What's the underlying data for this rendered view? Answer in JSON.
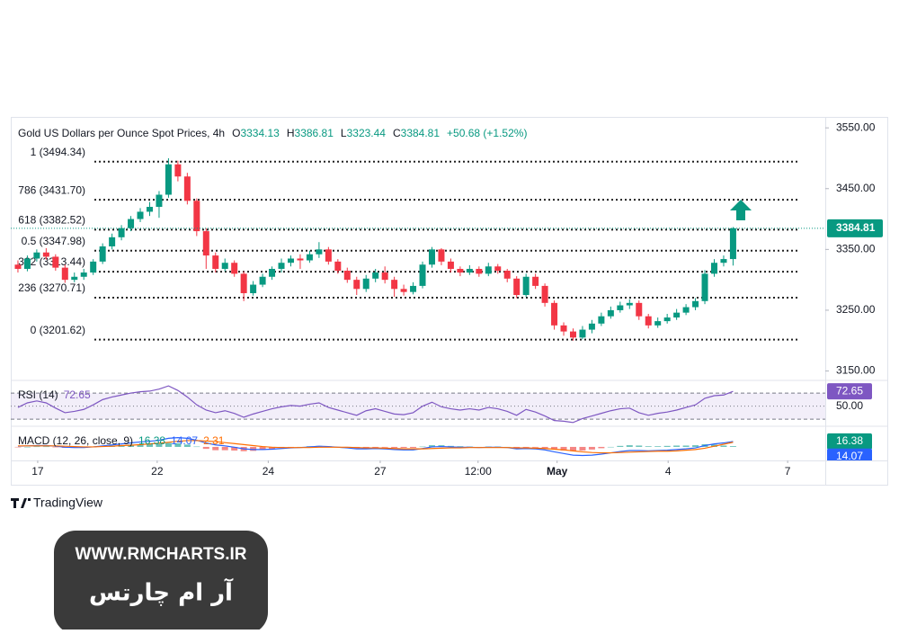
{
  "chart_data": {
    "type": "candlestick",
    "title": "Gold US Dollars per Ounce Spot Prices, 4h",
    "ohlc_labels": [
      "O",
      "H",
      "L",
      "C"
    ],
    "change_label": "+50.68 (+1.52%)",
    "up_color": "#089981",
    "down_color": "#f23645",
    "open": [
      3325,
      3318,
      3335,
      3345,
      3338,
      3320,
      3300,
      3305,
      3312,
      3330,
      3355,
      3370,
      3385,
      3400,
      3412,
      3420,
      3440,
      3490,
      3470,
      3430,
      3380,
      3340,
      3318,
      3328,
      3310,
      3278,
      3292,
      3305,
      3318,
      3328,
      3335,
      3332,
      3342,
      3350,
      3330,
      3315,
      3300,
      3285,
      3302,
      3312,
      3300,
      3285,
      3280,
      3290,
      3325,
      3350,
      3330,
      3318,
      3312,
      3318,
      3310,
      3322,
      3315,
      3302,
      3275,
      3305,
      3290,
      3262,
      3225,
      3215,
      3205,
      3218,
      3228,
      3240,
      3250,
      3258,
      3262,
      3240,
      3225,
      3232,
      3238,
      3246,
      3255,
      3265,
      3310,
      3328,
      3334.13
    ],
    "high": [
      3332,
      3340,
      3350,
      3352,
      3342,
      3325,
      3312,
      3318,
      3334,
      3360,
      3376,
      3390,
      3405,
      3418,
      3428,
      3446,
      3500,
      3496,
      3476,
      3434,
      3385,
      3345,
      3335,
      3332,
      3314,
      3298,
      3310,
      3322,
      3335,
      3340,
      3342,
      3348,
      3362,
      3354,
      3334,
      3320,
      3305,
      3308,
      3318,
      3322,
      3305,
      3292,
      3296,
      3330,
      3354,
      3352,
      3335,
      3322,
      3324,
      3322,
      3328,
      3326,
      3318,
      3306,
      3310,
      3310,
      3294,
      3266,
      3230,
      3220,
      3224,
      3234,
      3246,
      3256,
      3264,
      3268,
      3266,
      3244,
      3238,
      3244,
      3252,
      3260,
      3270,
      3316,
      3334,
      3340,
      3386.81
    ],
    "low": [
      3312,
      3314,
      3330,
      3333,
      3315,
      3295,
      3296,
      3300,
      3308,
      3326,
      3350,
      3365,
      3380,
      3395,
      3405,
      3402,
      3435,
      3462,
      3424,
      3372,
      3318,
      3312,
      3314,
      3305,
      3265,
      3274,
      3288,
      3300,
      3312,
      3322,
      3318,
      3328,
      3336,
      3325,
      3310,
      3295,
      3275,
      3280,
      3296,
      3294,
      3272,
      3274,
      3276,
      3286,
      3320,
      3324,
      3312,
      3306,
      3308,
      3305,
      3306,
      3310,
      3296,
      3270,
      3272,
      3285,
      3256,
      3218,
      3208,
      3200,
      3202,
      3212,
      3224,
      3236,
      3246,
      3252,
      3234,
      3220,
      3221,
      3228,
      3234,
      3242,
      3250,
      3260,
      3305,
      3322,
      3323.44
    ],
    "close": [
      3318,
      3335,
      3345,
      3338,
      3320,
      3300,
      3305,
      3312,
      3330,
      3355,
      3370,
      3385,
      3400,
      3412,
      3420,
      3440,
      3490,
      3470,
      3430,
      3380,
      3340,
      3318,
      3328,
      3310,
      3278,
      3292,
      3305,
      3318,
      3328,
      3335,
      3332,
      3342,
      3350,
      3330,
      3315,
      3300,
      3285,
      3302,
      3312,
      3300,
      3285,
      3280,
      3290,
      3325,
      3350,
      3330,
      3318,
      3312,
      3318,
      3310,
      3322,
      3315,
      3302,
      3275,
      3305,
      3290,
      3262,
      3225,
      3215,
      3205,
      3218,
      3228,
      3240,
      3250,
      3258,
      3262,
      3240,
      3225,
      3232,
      3238,
      3246,
      3255,
      3265,
      3310,
      3328,
      3334.13,
      3384.81
    ],
    "ylim": [
      3136,
      3568
    ],
    "yticks": [
      {
        "value": 3550,
        "label": "3550.00"
      },
      {
        "value": 3450,
        "label": "3450.00"
      },
      {
        "value": 3350,
        "label": "3350.00"
      },
      {
        "value": 3250,
        "label": "3250.00"
      },
      {
        "value": 3150,
        "label": "3150.00"
      }
    ],
    "xlim": [
      -0.76,
      85.8
    ],
    "xticks": [
      {
        "value": 2.1,
        "label": "17"
      },
      {
        "value": 14.8,
        "label": "22"
      },
      {
        "value": 26.6,
        "label": "24"
      },
      {
        "value": 38.5,
        "label": "27"
      },
      {
        "value": 48.9,
        "label": "12:00"
      },
      {
        "value": 57.3,
        "label": "May"
      },
      {
        "value": 69.1,
        "label": "4"
      },
      {
        "value": 81.8,
        "label": "7"
      }
    ],
    "fib_levels": [
      {
        "label": "1 (3494.34)",
        "value": 3494.34
      },
      {
        "label": "786 (3431.70)",
        "value": 3431.7
      },
      {
        "label": "618 (3382.52)",
        "value": 3382.52
      },
      {
        "label": "0.5 (3347.98)",
        "value": 3347.98
      },
      {
        "label": "382 (3313.44)",
        "value": 3313.44
      },
      {
        "label": "236 (3270.71)",
        "value": 3270.71
      },
      {
        "label": "0 (3201.62)",
        "value": 3201.62
      }
    ],
    "rsi": {
      "title": "RSI (14)",
      "color": "#7e57c2",
      "values": [
        48,
        55,
        58,
        55,
        47,
        40,
        42,
        45,
        52,
        60,
        64,
        67,
        70,
        72,
        73,
        76,
        81,
        74,
        64,
        52,
        44,
        40,
        43,
        39,
        33,
        38,
        42,
        46,
        49,
        51,
        50,
        53,
        55,
        48,
        44,
        40,
        36,
        43,
        46,
        42,
        38,
        37,
        40,
        50,
        56,
        49,
        46,
        44,
        46,
        44,
        48,
        46,
        42,
        36,
        45,
        41,
        35,
        28,
        27,
        25,
        31,
        35,
        39,
        43,
        46,
        47,
        40,
        36,
        39,
        41,
        44,
        48,
        52,
        62,
        66,
        67,
        72.65
      ],
      "ylim": [
        22,
        88
      ],
      "yticks": [
        {
          "value": 50,
          "label": "50.00"
        }
      ],
      "bands": [
        30,
        70
      ]
    },
    "macd": {
      "title": "MACD (12, 26, close, 9)",
      "macd_color": "#2962ff",
      "signal_color": "#ff6d00",
      "macd": [
        2,
        3,
        4,
        4,
        2,
        -1,
        -2,
        -2,
        0,
        3,
        6,
        9,
        12,
        15,
        17,
        20,
        26,
        28,
        26,
        20,
        12,
        6,
        3,
        -1,
        -6,
        -8,
        -8,
        -7,
        -5,
        -3,
        -2,
        0,
        2,
        1,
        -1,
        -3,
        -6,
        -6,
        -5,
        -6,
        -8,
        -9,
        -9,
        -5,
        0,
        1,
        0,
        -1,
        -1,
        -2,
        -1,
        -1,
        -2,
        -6,
        -5,
        -6,
        -9,
        -15,
        -20,
        -25,
        -26,
        -25,
        -22,
        -18,
        -14,
        -11,
        -11,
        -12,
        -11,
        -10,
        -8,
        -6,
        -3,
        4,
        9,
        12,
        16.38
      ],
      "signal": [
        3,
        3,
        3,
        3,
        3,
        2,
        1,
        0,
        0,
        1,
        2,
        4,
        5,
        7,
        9,
        11,
        14,
        17,
        19,
        19,
        18,
        16,
        13,
        10,
        7,
        4,
        1,
        -1,
        -2,
        -2,
        -2,
        -2,
        -1,
        -1,
        -1,
        -1,
        -2,
        -3,
        -3,
        -4,
        -5,
        -6,
        -6,
        -6,
        -5,
        -4,
        -3,
        -3,
        -2,
        -2,
        -2,
        -2,
        -2,
        -3,
        -3,
        -4,
        -5,
        -7,
        -9,
        -12,
        -15,
        -17,
        -18,
        -18,
        -17,
        -16,
        -15,
        -14,
        -13,
        -13,
        -12,
        -10,
        -8,
        -4,
        2,
        8,
        14.07
      ],
      "histogram": [
        -1,
        0,
        1,
        1,
        -1,
        -3,
        -3,
        -2,
        0,
        2,
        4,
        5,
        7,
        8,
        8,
        9,
        12,
        11,
        7,
        1,
        -6,
        -10,
        -10,
        -11,
        -13,
        -12,
        -9,
        -6,
        -3,
        -1,
        0,
        2,
        3,
        2,
        0,
        -2,
        -4,
        -3,
        -2,
        -2,
        -3,
        -3,
        -3,
        1,
        5,
        5,
        3,
        2,
        1,
        0,
        1,
        1,
        0,
        -3,
        -2,
        -2,
        -4,
        -8,
        -11,
        -13,
        -11,
        -8,
        -4,
        0,
        3,
        5,
        4,
        2,
        2,
        3,
        4,
        4,
        5,
        8,
        7,
        4,
        2.31
      ],
      "ylim": [
        -41,
        57
      ]
    },
    "branding": "TradingView",
    "watermark": {
      "url": "WWW.RMCHARTS.IR",
      "name": "آر ام چارتس"
    }
  }
}
